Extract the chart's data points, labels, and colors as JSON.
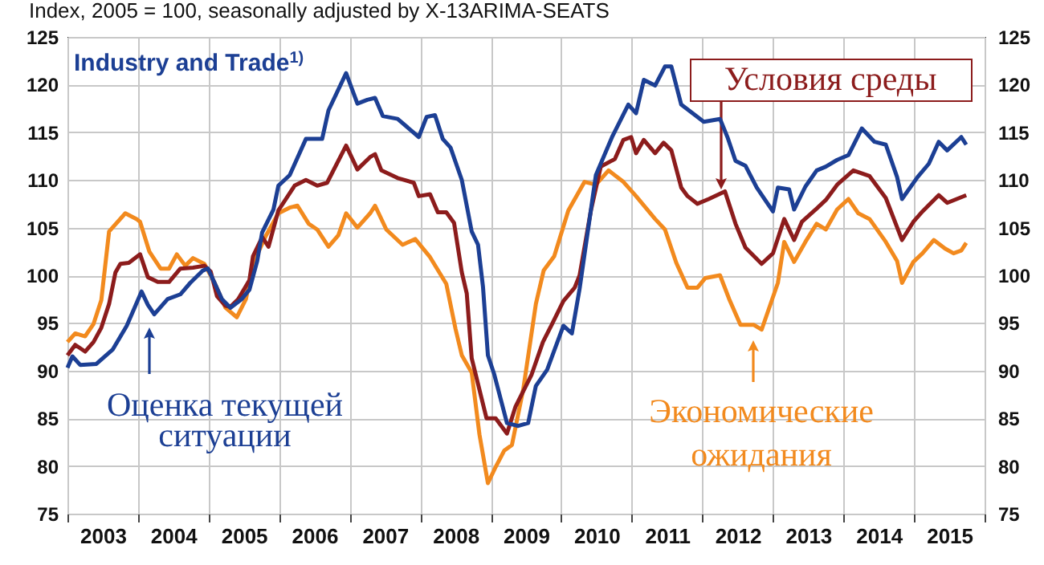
{
  "chart_data": {
    "type": "line",
    "title": "Index, 2005 = 100, seasonally adjusted by X-13ARIMA-SEATS",
    "subtitle": "Industry and Trade$^{1)}$",
    "xlim": [
      2003,
      2016
    ],
    "xticks": [
      {
        "value": 2003,
        "label": null
      },
      {
        "value": 2003.5,
        "label": "2003"
      },
      {
        "value": 2004,
        "label": null
      },
      {
        "value": 2004.5,
        "label": "2004"
      },
      {
        "value": 2005,
        "label": null
      },
      {
        "value": 2005.5,
        "label": "2005"
      },
      {
        "value": 2006,
        "label": null
      },
      {
        "value": 2006.5,
        "label": "2006"
      },
      {
        "value": 2007,
        "label": null
      },
      {
        "value": 2007.5,
        "label": "2007"
      },
      {
        "value": 2008,
        "label": null
      },
      {
        "value": 2008.5,
        "label": "2008"
      },
      {
        "value": 2009,
        "label": null
      },
      {
        "value": 2009.5,
        "label": "2009"
      },
      {
        "value": 2010,
        "label": null
      },
      {
        "value": 2010.5,
        "label": "2010"
      },
      {
        "value": 2011,
        "label": null
      },
      {
        "value": 2011.5,
        "label": "2011"
      },
      {
        "value": 2012,
        "label": null
      },
      {
        "value": 2012.5,
        "label": "2012"
      },
      {
        "value": 2013,
        "label": null
      },
      {
        "value": 2013.5,
        "label": "2013"
      },
      {
        "value": 2014,
        "label": null
      },
      {
        "value": 2014.5,
        "label": "2014"
      },
      {
        "value": 2015,
        "label": null
      },
      {
        "value": 2015.5,
        "label": "2015"
      },
      {
        "value": 2016,
        "label": null
      }
    ],
    "ylim": [
      75,
      125
    ],
    "yticks": [
      75,
      80,
      85,
      90,
      95,
      100,
      105,
      110,
      115,
      120,
      125
    ],
    "y2lim": [
      75,
      125
    ],
    "y2ticks": [
      75,
      80,
      85,
      90,
      95,
      100,
      105,
      110,
      115,
      120,
      125
    ],
    "grid": true,
    "legend": "bottom",
    "series": [
      {
        "name": "Экономические ожидания",
        "color": "#f28a1e",
        "x": [
          2003.0,
          2003.11,
          2003.25,
          2003.37,
          2003.48,
          2003.59,
          2003.82,
          2003.98,
          2004.03,
          2004.16,
          2004.32,
          2004.44,
          2004.55,
          2004.67,
          2004.78,
          2004.94,
          2005.08,
          2005.24,
          2005.4,
          2005.53,
          2005.63,
          2005.81,
          2005.99,
          2006.15,
          2006.26,
          2006.42,
          2006.54,
          2006.7,
          2006.84,
          2006.95,
          2007.11,
          2007.29,
          2007.36,
          2007.52,
          2007.75,
          2007.93,
          2008.14,
          2008.37,
          2008.5,
          2008.59,
          2008.73,
          2008.84,
          2008.96,
          2009.07,
          2009.19,
          2009.3,
          2009.46,
          2009.55,
          2009.64,
          2009.75,
          2009.9,
          2010.1,
          2010.33,
          2010.49,
          2010.67,
          2010.88,
          2011.06,
          2011.33,
          2011.47,
          2011.63,
          2011.79,
          2011.93,
          2012.04,
          2012.25,
          2012.38,
          2012.54,
          2012.73,
          2012.84,
          2013.07,
          2013.16,
          2013.3,
          2013.46,
          2013.62,
          2013.75,
          2013.91,
          2014.07,
          2014.21,
          2014.37,
          2014.6,
          2014.76,
          2014.83,
          2014.99,
          2015.12,
          2015.28,
          2015.44,
          2015.56,
          2015.67,
          2015.74
        ],
        "values": [
          93.0,
          93.9,
          93.6,
          94.9,
          97.4,
          104.6,
          106.5,
          105.9,
          105.6,
          102.5,
          100.7,
          100.7,
          102.2,
          101.0,
          101.8,
          101.2,
          99.3,
          96.6,
          95.6,
          97.5,
          101.2,
          104.1,
          106.5,
          107.1,
          107.3,
          105.4,
          104.8,
          103.0,
          104.2,
          106.5,
          105.0,
          106.5,
          107.3,
          104.8,
          103.2,
          103.8,
          101.9,
          99.1,
          94.4,
          91.6,
          89.8,
          83.3,
          78.2,
          79.9,
          81.6,
          82.2,
          88.0,
          92.5,
          97.0,
          100.5,
          102.0,
          106.8,
          109.8,
          109.5,
          111.0,
          109.8,
          108.3,
          105.9,
          104.8,
          101.3,
          98.7,
          98.7,
          99.7,
          100.0,
          97.5,
          94.8,
          94.8,
          94.3,
          99.2,
          103.5,
          101.4,
          103.5,
          105.4,
          104.8,
          106.9,
          108.0,
          106.5,
          105.9,
          103.5,
          101.5,
          99.2,
          101.4,
          102.3,
          103.7,
          102.8,
          102.3,
          102.6,
          103.4
        ]
      },
      {
        "name": "Условия среды",
        "color": "#8c1c1c",
        "x": [
          2003.0,
          2003.11,
          2003.25,
          2003.37,
          2003.48,
          2003.59,
          2003.68,
          2003.75,
          2003.87,
          2004.03,
          2004.14,
          2004.28,
          2004.44,
          2004.6,
          2004.78,
          2004.94,
          2005.03,
          2005.12,
          2005.24,
          2005.31,
          2005.42,
          2005.58,
          2005.63,
          2005.76,
          2005.85,
          2005.99,
          2006.22,
          2006.38,
          2006.54,
          2006.68,
          2006.95,
          2007.11,
          2007.29,
          2007.36,
          2007.45,
          2007.68,
          2007.91,
          2007.98,
          2008.14,
          2008.25,
          2008.37,
          2008.48,
          2008.59,
          2008.66,
          2008.73,
          2008.94,
          2009.07,
          2009.23,
          2009.35,
          2009.58,
          2009.74,
          2009.87,
          2010.03,
          2010.19,
          2010.26,
          2010.42,
          2010.56,
          2010.76,
          2010.88,
          2010.99,
          2011.06,
          2011.17,
          2011.33,
          2011.45,
          2011.56,
          2011.7,
          2011.79,
          2011.93,
          2012.09,
          2012.32,
          2012.47,
          2012.61,
          2012.84,
          2013.0,
          2013.16,
          2013.3,
          2013.41,
          2013.62,
          2013.75,
          2013.91,
          2014.14,
          2014.37,
          2014.6,
          2014.83,
          2014.99,
          2015.12,
          2015.35,
          2015.47,
          2015.74
        ],
        "values": [
          91.6,
          92.7,
          92.0,
          93.0,
          94.5,
          97.0,
          100.3,
          101.2,
          101.3,
          102.2,
          99.8,
          99.3,
          99.3,
          100.7,
          100.8,
          101.0,
          100.4,
          97.8,
          96.8,
          96.7,
          97.5,
          99.5,
          102.0,
          104.0,
          103.0,
          106.8,
          109.4,
          110.0,
          109.4,
          109.7,
          113.6,
          111.1,
          112.4,
          112.7,
          111.0,
          110.2,
          109.7,
          108.3,
          108.5,
          106.6,
          106.6,
          105.5,
          100.3,
          98.1,
          91.3,
          85.0,
          85.0,
          83.4,
          86.2,
          89.6,
          93.0,
          94.9,
          97.3,
          98.7,
          100.0,
          106.8,
          111.4,
          112.2,
          114.2,
          114.5,
          112.8,
          114.2,
          112.8,
          113.9,
          113.1,
          109.2,
          108.3,
          107.5,
          108.0,
          108.8,
          105.4,
          102.9,
          101.2,
          102.3,
          105.9,
          103.7,
          105.6,
          107.0,
          107.9,
          109.5,
          111.0,
          110.4,
          108.1,
          103.7,
          105.6,
          106.7,
          108.4,
          107.6,
          108.4
        ]
      },
      {
        "name": "Оценка текущей ситуации",
        "color": "#1c3f94",
        "x": [
          2003.0,
          2003.07,
          2003.18,
          2003.41,
          2003.64,
          2003.84,
          2003.94,
          2004.05,
          2004.14,
          2004.23,
          2004.42,
          2004.6,
          2004.74,
          2004.92,
          2004.99,
          2005.08,
          2005.19,
          2005.31,
          2005.47,
          2005.58,
          2005.69,
          2005.76,
          2005.92,
          2005.99,
          2006.15,
          2006.38,
          2006.61,
          2006.7,
          2006.95,
          2007.11,
          2007.25,
          2007.36,
          2007.47,
          2007.68,
          2007.98,
          2008.09,
          2008.21,
          2008.32,
          2008.43,
          2008.59,
          2008.73,
          2008.82,
          2008.89,
          2008.96,
          2009.05,
          2009.23,
          2009.39,
          2009.53,
          2009.64,
          2009.8,
          2010.03,
          2010.15,
          2010.26,
          2010.49,
          2010.72,
          2010.95,
          2011.06,
          2011.17,
          2011.33,
          2011.47,
          2011.56,
          2011.7,
          2011.86,
          2012.02,
          2012.25,
          2012.36,
          2012.47,
          2012.61,
          2012.77,
          2013.0,
          2013.07,
          2013.23,
          2013.3,
          2013.46,
          2013.62,
          2013.75,
          2013.91,
          2014.07,
          2014.26,
          2014.44,
          2014.6,
          2014.76,
          2014.83,
          2015.05,
          2015.21,
          2015.35,
          2015.47,
          2015.67,
          2015.74
        ],
        "values": [
          90.3,
          91.5,
          90.6,
          90.7,
          92.2,
          94.7,
          96.4,
          98.3,
          96.9,
          95.9,
          97.5,
          98.0,
          99.2,
          100.5,
          100.7,
          99.3,
          97.5,
          96.6,
          97.5,
          98.5,
          101.5,
          104.5,
          106.9,
          109.4,
          110.5,
          114.3,
          114.3,
          117.3,
          121.2,
          118.0,
          118.4,
          118.6,
          116.7,
          116.4,
          114.5,
          116.6,
          116.8,
          114.3,
          113.4,
          110.0,
          104.6,
          103.2,
          98.8,
          91.6,
          89.6,
          84.5,
          84.2,
          84.5,
          88.4,
          90.1,
          94.7,
          93.9,
          98.6,
          110.5,
          114.5,
          117.9,
          117.0,
          120.5,
          119.9,
          121.9,
          121.9,
          117.9,
          117.0,
          116.1,
          116.4,
          114.4,
          112.0,
          111.5,
          109.2,
          106.7,
          109.2,
          109.0,
          106.9,
          109.3,
          111.0,
          111.4,
          112.1,
          112.6,
          115.4,
          114.0,
          113.7,
          110.3,
          108.0,
          110.3,
          111.7,
          114.0,
          113.1,
          114.5,
          113.7
        ]
      }
    ]
  }
}
